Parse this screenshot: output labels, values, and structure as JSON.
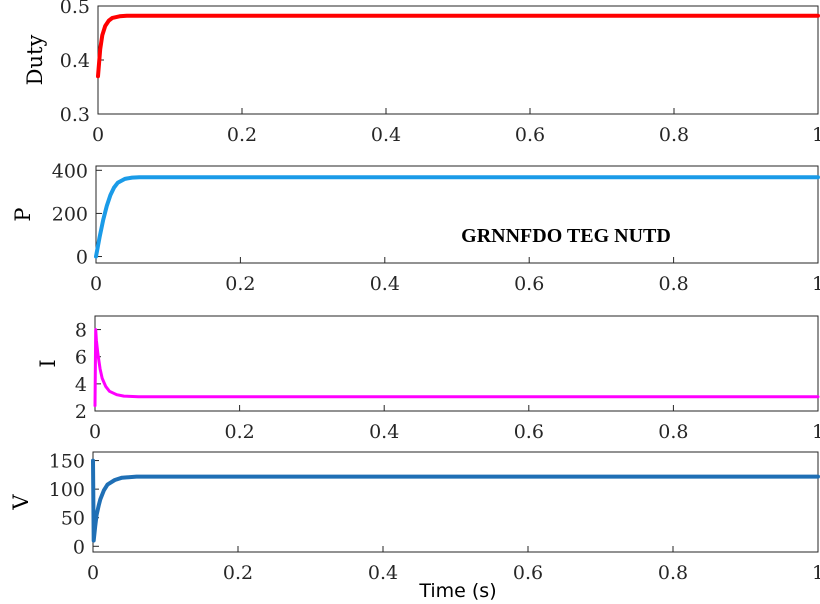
{
  "chart_data": [
    {
      "type": "line",
      "ylabel": "Duty",
      "xlim": [
        0,
        1
      ],
      "ylim": [
        0.3,
        0.5
      ],
      "xticks": [
        "0",
        "0.2",
        "0.4",
        "0.6",
        "0.8",
        "1"
      ],
      "yticks": [
        "0.3",
        "0.4",
        "0.5"
      ],
      "grid": false,
      "series": [
        {
          "color": "#ff0000",
          "x": [
            0,
            0.003,
            0.006,
            0.01,
            0.015,
            0.02,
            0.03,
            0.04,
            0.06,
            0.1,
            0.3,
            0.6,
            1.0
          ],
          "values": [
            0.37,
            0.42,
            0.446,
            0.463,
            0.473,
            0.478,
            0.481,
            0.482,
            0.482,
            0.482,
            0.482,
            0.482,
            0.482
          ]
        }
      ]
    },
    {
      "type": "line",
      "ylabel": "P",
      "xlim": [
        0,
        1
      ],
      "ylim": [
        -30,
        420
      ],
      "xticks": [
        "0",
        "0.2",
        "0.4",
        "0.6",
        "0.8",
        "1"
      ],
      "yticks": [
        "0",
        "200",
        "400"
      ],
      "grid": false,
      "annotation": "GRNNFDO TEG NUTD",
      "series": [
        {
          "color": "#1a9be8",
          "x": [
            0,
            0.005,
            0.01,
            0.015,
            0.02,
            0.025,
            0.03,
            0.04,
            0.05,
            0.06,
            0.08,
            0.1,
            0.3,
            0.6,
            1.0
          ],
          "values": [
            0,
            90,
            170,
            235,
            285,
            320,
            342,
            360,
            366,
            368,
            368,
            368,
            368,
            368,
            368
          ]
        }
      ]
    },
    {
      "type": "line",
      "ylabel": "I",
      "xlim": [
        0,
        1
      ],
      "ylim": [
        2,
        9
      ],
      "xticks": [
        "0",
        "0.2",
        "0.4",
        "0.6",
        "0.8",
        "1"
      ],
      "yticks": [
        "2",
        "4",
        "6",
        "8"
      ],
      "grid": false,
      "series": [
        {
          "color": "#ff00ff",
          "x": [
            0,
            0.001,
            0.002,
            0.004,
            0.007,
            0.01,
            0.015,
            0.02,
            0.03,
            0.04,
            0.06,
            0.1,
            0.3,
            0.6,
            1.0
          ],
          "values": [
            2.4,
            8.0,
            7.2,
            6.2,
            5.1,
            4.4,
            3.8,
            3.45,
            3.2,
            3.1,
            3.05,
            3.05,
            3.05,
            3.05,
            3.05
          ]
        }
      ]
    },
    {
      "type": "line",
      "ylabel": "V",
      "xlabel": "Time (s)",
      "xlim": [
        0,
        1
      ],
      "ylim": [
        -10,
        165
      ],
      "xticks": [
        "0",
        "0.2",
        "0.4",
        "0.6",
        "0.8",
        "1"
      ],
      "yticks": [
        "0",
        "50",
        "100",
        "150"
      ],
      "grid": false,
      "series": [
        {
          "color": "#1f6fb5",
          "x": [
            0,
            0.001,
            0.003,
            0.005,
            0.008,
            0.01,
            0.015,
            0.02,
            0.03,
            0.04,
            0.06,
            0.1,
            0.3,
            0.6,
            1.0
          ],
          "values": [
            150,
            10,
            35,
            55,
            72,
            82,
            98,
            108,
            116,
            120,
            122,
            122,
            122,
            122,
            122
          ]
        }
      ]
    }
  ]
}
